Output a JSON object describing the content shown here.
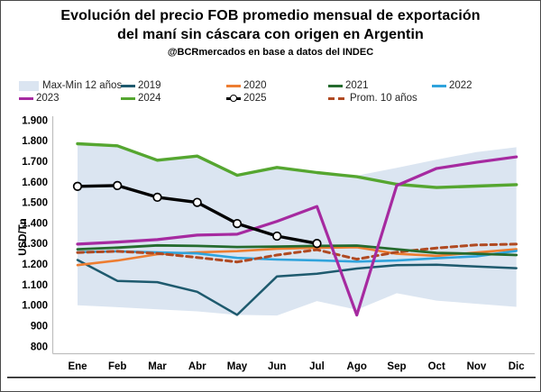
{
  "header": {
    "title_line1": "Evolución del precio FOB promedio mensual de exportación",
    "title_line2": "del maní sin cáscara con origen en Argentin",
    "subtitle": "@BCRmercados en base a datos del INDEC"
  },
  "legend": {
    "rows": [
      [
        {
          "label": "Max-Min 12 años",
          "marker": "band",
          "color": "#dbe5f1"
        },
        {
          "label": "2019",
          "marker": "line",
          "color": "#1e5a6e"
        },
        {
          "label": "2020",
          "marker": "line",
          "color": "#ed7d31"
        },
        {
          "label": "2021",
          "marker": "line",
          "color": "#256b2e"
        },
        {
          "label": "2022",
          "marker": "line",
          "color": "#2fa3dc"
        }
      ],
      [
        {
          "label": "2023",
          "marker": "line",
          "color": "#a62aa0"
        },
        {
          "label": "2024",
          "marker": "line",
          "color": "#55a630"
        },
        {
          "label": "2025",
          "marker": "line-marker",
          "color": "#000000"
        },
        {
          "label": "Prom. 10 años",
          "marker": "dashes",
          "color": "#b04a22"
        }
      ]
    ]
  },
  "chart_data": {
    "type": "line",
    "title": "Evolución del precio FOB promedio mensual de exportación del maní sin cáscara con origen en Argentin",
    "subtitle": "@BCRmercados en base a datos del INDEC",
    "categories": [
      "Ene",
      "Feb",
      "Mar",
      "Abr",
      "May",
      "Jun",
      "Jul",
      "Ago",
      "Sep",
      "Oct",
      "Nov",
      "Dic"
    ],
    "ylabel": "USD/Tn",
    "ylim": [
      800,
      1900
    ],
    "grid": false,
    "legend_position": "top",
    "y_tick_values": [
      1900,
      1800,
      1700,
      1600,
      1500,
      1400,
      1300,
      1200,
      1100,
      1000,
      900,
      800
    ],
    "y_tick_labels": [
      "1.900",
      "1.800",
      "1.700",
      "1.600",
      "1.500",
      "1.400",
      "1.300",
      "1.200",
      "1.100",
      "1.000",
      "900",
      "800"
    ],
    "band": {
      "name": "Max-Min 12 años",
      "color": "#dbe5f1",
      "max": [
        1785,
        1775,
        1705,
        1725,
        1632,
        1670,
        1648,
        1630,
        1668,
        1708,
        1745,
        1768
      ],
      "min": [
        1000,
        990,
        980,
        970,
        953,
        950,
        1020,
        978,
        1058,
        1022,
        1007,
        992
      ]
    },
    "series": [
      {
        "name": "2019",
        "color": "#1e5a6e",
        "style": "solid",
        "values": [
          1220,
          1118,
          1112,
          1065,
          953,
          1140,
          1153,
          1178,
          1195,
          1197,
          1188,
          1180
        ]
      },
      {
        "name": "2020",
        "color": "#ed7d31",
        "style": "solid",
        "values": [
          1195,
          1217,
          1248,
          1257,
          1263,
          1274,
          1279,
          1282,
          1250,
          1240,
          1256,
          1272
        ]
      },
      {
        "name": "2022",
        "color": "#2fa3dc",
        "style": "solid",
        "values": [
          1258,
          1262,
          1257,
          1252,
          1230,
          1222,
          1218,
          1212,
          1217,
          1228,
          1238,
          1264
        ]
      },
      {
        "name": "Prom. 10 años",
        "color": "#b04a22",
        "style": "dashed",
        "values": [
          1256,
          1262,
          1252,
          1232,
          1210,
          1244,
          1270,
          1224,
          1258,
          1278,
          1293,
          1297
        ]
      },
      {
        "name": "2021",
        "color": "#256b2e",
        "style": "solid",
        "values": [
          1272,
          1280,
          1291,
          1288,
          1283,
          1285,
          1288,
          1290,
          1272,
          1254,
          1250,
          1244
        ]
      },
      {
        "name": "2024",
        "color": "#55a630",
        "style": "solid",
        "values": [
          1785,
          1775,
          1705,
          1725,
          1632,
          1670,
          1645,
          1625,
          1588,
          1572,
          1579,
          1586
        ]
      },
      {
        "name": "2023",
        "color": "#a62aa0",
        "style": "solid",
        "values": [
          1297,
          1307,
          1319,
          1341,
          1345,
          1408,
          1480,
          952,
          1582,
          1665,
          1695,
          1721
        ]
      },
      {
        "name": "2025",
        "color": "#000000",
        "style": "solid-markers",
        "values": [
          1578,
          1582,
          1525,
          1500,
          1397,
          1336,
          1300
        ]
      }
    ]
  }
}
